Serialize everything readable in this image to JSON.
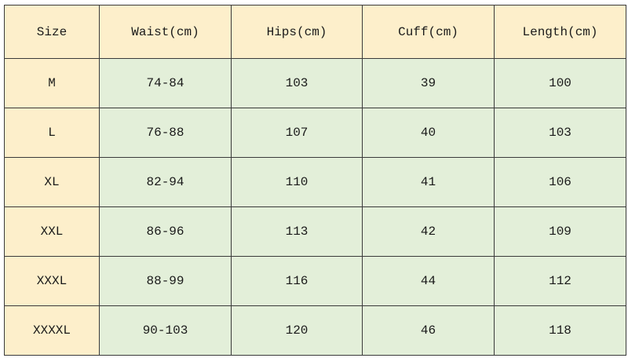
{
  "table": {
    "header": [
      "Size",
      "Waist(cm)",
      "Hips(cm)",
      "Cuff(cm)",
      "Length(cm)"
    ],
    "rows": [
      [
        "M",
        "74-84",
        103,
        39,
        100
      ],
      [
        "L",
        "76-88",
        107,
        40,
        103
      ],
      [
        "XL",
        "82-94",
        110,
        41,
        106
      ],
      [
        "XXL",
        "86-96",
        113,
        42,
        109
      ],
      [
        "XXXL",
        "88-99",
        116,
        44,
        112
      ],
      [
        "XXXXL",
        "90-103",
        120,
        46,
        118
      ]
    ]
  }
}
